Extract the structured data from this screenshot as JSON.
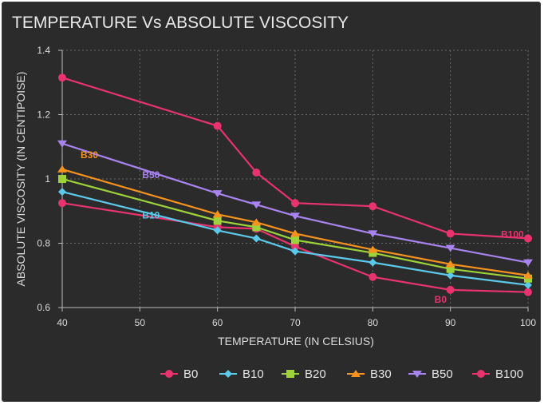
{
  "chart_data": {
    "type": "line",
    "title": "TEMPERATURE Vs ABSOLUTE VISCOSITY",
    "xlabel": "TEMPERATURE (IN CELSIUS)",
    "ylabel": "ABSOLUTE VISCOSITY (IN CENTIPOISE)",
    "xlim": [
      40,
      100
    ],
    "ylim": [
      0.6,
      1.4
    ],
    "xticks": [
      40,
      50,
      60,
      70,
      80,
      90,
      100
    ],
    "yticks": [
      0.6,
      0.8,
      1,
      1.2,
      1.4
    ],
    "x": [
      40,
      60,
      65,
      70,
      80,
      90,
      100
    ],
    "grid": true,
    "legend_position": "bottom-right",
    "series": [
      {
        "name": "B0",
        "values": [
          0.925,
          0.85,
          0.845,
          0.79,
          0.695,
          0.655,
          0.648
        ],
        "color": "#e8336e",
        "marker": "circle",
        "annotation": "B0",
        "annotation_at": 90
      },
      {
        "name": "B10",
        "values": [
          0.96,
          0.84,
          0.815,
          0.775,
          0.74,
          0.7,
          0.67
        ],
        "color": "#5bc9ea",
        "marker": "diamond",
        "annotation": "B10",
        "annotation_at": 50
      },
      {
        "name": "B20",
        "values": [
          1.0,
          0.87,
          0.85,
          0.81,
          0.77,
          0.72,
          0.69
        ],
        "color": "#9cd33a",
        "marker": "square",
        "annotation": null
      },
      {
        "name": "B30",
        "values": [
          1.03,
          0.89,
          0.865,
          0.83,
          0.78,
          0.735,
          0.7
        ],
        "color": "#f7921e",
        "marker": "triangle-up",
        "annotation": "B30",
        "annotation_at": 40
      },
      {
        "name": "B50",
        "values": [
          1.11,
          0.955,
          0.92,
          0.885,
          0.83,
          0.785,
          0.74
        ],
        "color": "#a984f0",
        "marker": "triangle-down",
        "annotation": "B50",
        "annotation_at": 50
      },
      {
        "name": "B100",
        "values": [
          1.315,
          1.165,
          1.02,
          0.925,
          0.915,
          0.83,
          0.815
        ],
        "color": "#e8336e",
        "marker": "circle",
        "annotation": "B100",
        "annotation_at": 100
      }
    ]
  }
}
